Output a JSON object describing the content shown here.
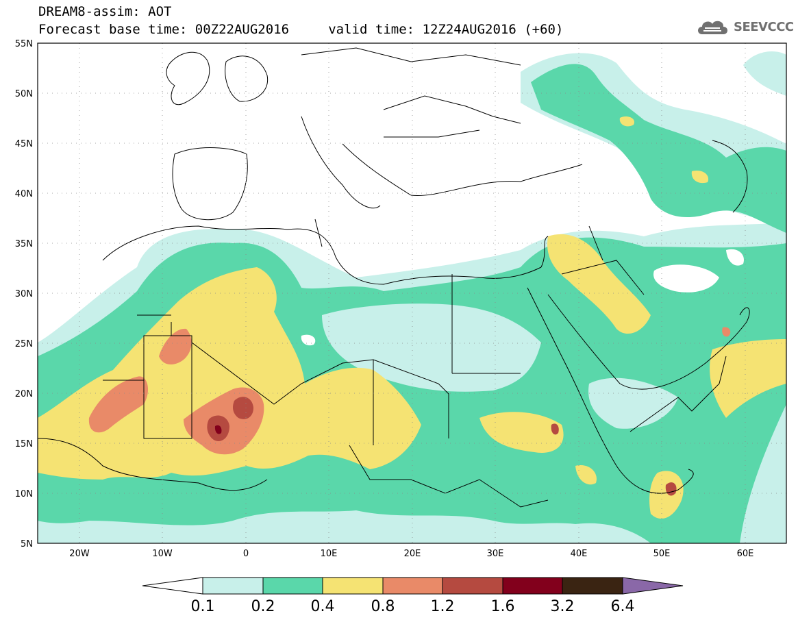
{
  "header": {
    "line1": "DREAM8-assim: AOT",
    "line2": "Forecast base time: 00Z22AUG2016     valid time: 12Z24AUG2016 (+60)"
  },
  "logo": {
    "text": "SEEVCCC",
    "icon": "cloud-icon"
  },
  "map": {
    "lat_labels": [
      "55N",
      "50N",
      "45N",
      "40N",
      "35N",
      "30N",
      "25N",
      "20N",
      "15N",
      "10N",
      "5N"
    ],
    "lon_labels": [
      "20W",
      "10W",
      "0",
      "10E",
      "20E",
      "30E",
      "40E",
      "50E",
      "60E"
    ],
    "lat_range": [
      5,
      55
    ],
    "lon_range": [
      -25,
      65
    ],
    "grid": "dotted"
  },
  "colorbar": {
    "labels": [
      "0.1",
      "0.2",
      "0.4",
      "0.8",
      "1.2",
      "1.6",
      "3.2",
      "6.4"
    ],
    "colors": [
      "#ffffff",
      "#c8f0ea",
      "#5ad7aa",
      "#f5e373",
      "#e98a68",
      "#b54a40",
      "#82001c",
      "#3a2412",
      "#8a68a8"
    ]
  }
}
